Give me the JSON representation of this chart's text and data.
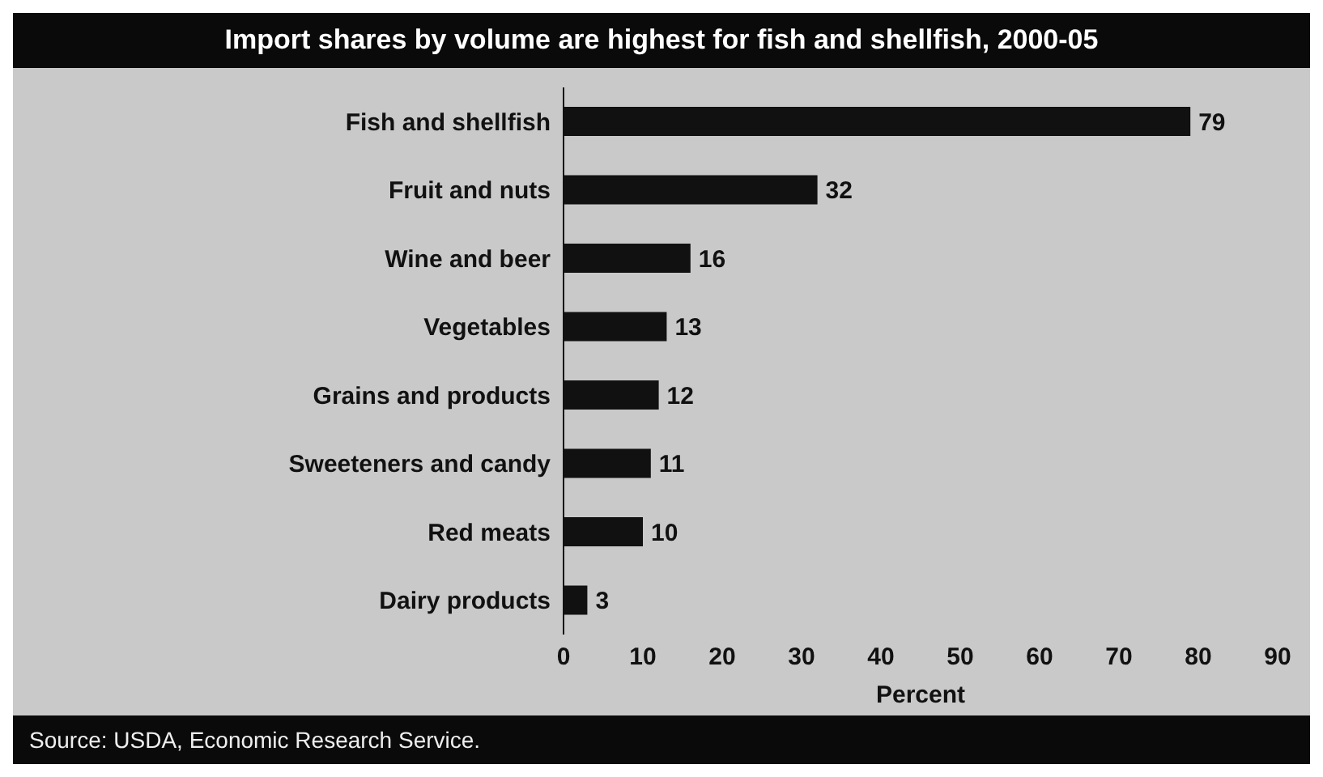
{
  "chart_data": {
    "type": "bar",
    "orientation": "horizontal",
    "title": "Import shares by volume are highest for fish and shellfish, 2000-05",
    "categories": [
      "Fish and shellfish",
      "Fruit and nuts",
      "Wine and beer",
      "Vegetables",
      "Grains and products",
      "Sweeteners and candy",
      "Red meats",
      "Dairy products"
    ],
    "values": [
      79,
      32,
      16,
      13,
      12,
      11,
      10,
      3
    ],
    "color": "#111111",
    "xlim": [
      0,
      90
    ],
    "xticks": [
      0,
      10,
      20,
      30,
      40,
      50,
      60,
      70,
      80,
      90
    ],
    "xlabel": "Percent",
    "data_labels": true,
    "annotations": [
      "Source:  USDA, Economic Research Service."
    ]
  }
}
